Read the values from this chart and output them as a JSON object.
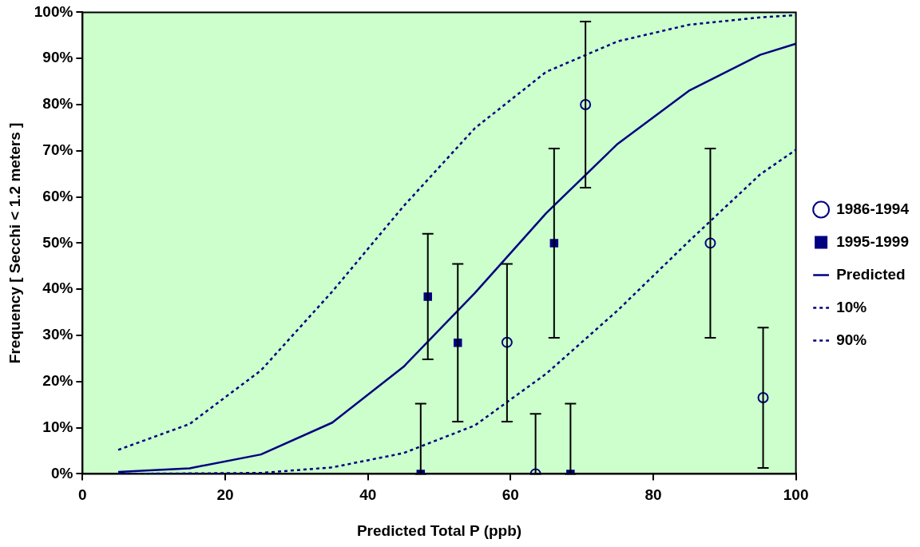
{
  "chart_data": {
    "type": "scatter",
    "xlabel": "Predicted Total P (ppb)",
    "ylabel": "Frequency [ Secchi < 1.2 meters ]",
    "xlim": [
      0,
      100
    ],
    "ylim": [
      0,
      100
    ],
    "xticks": [
      0,
      20,
      40,
      60,
      80,
      100
    ],
    "yticks": [
      {
        "value": 0,
        "label": "0%"
      },
      {
        "value": 10,
        "label": "10%"
      },
      {
        "value": 20,
        "label": "20%"
      },
      {
        "value": 30,
        "label": "30%"
      },
      {
        "value": 40,
        "label": "40%"
      },
      {
        "value": 50,
        "label": "50%"
      },
      {
        "value": 60,
        "label": "60%"
      },
      {
        "value": 70,
        "label": "70%"
      },
      {
        "value": 80,
        "label": "80%"
      },
      {
        "value": 90,
        "label": "90%"
      },
      {
        "value": 100,
        "label": "100%"
      }
    ],
    "grid": false,
    "legend": "right",
    "series": [
      {
        "name": "1986-1994",
        "marker": "circle",
        "color": "#000080",
        "x": [
          59.5,
          63.5,
          70.5,
          88.0,
          95.4
        ],
        "values": [
          28.5,
          0,
          80,
          50,
          16.5
        ],
        "errors": [
          [
            11.3,
            45.5
          ],
          [
            0,
            13
          ],
          [
            62,
            98
          ],
          [
            29.5,
            70.5
          ],
          [
            1.3,
            31.7
          ]
        ]
      },
      {
        "name": "1995-1999",
        "marker": "square",
        "color": "#000080",
        "x": [
          47.4,
          48.4,
          52.6,
          66.1,
          68.4
        ],
        "values": [
          0,
          38.4,
          28.4,
          50,
          0
        ],
        "errors": [
          [
            0,
            15.2
          ],
          [
            24.8,
            52
          ],
          [
            11.3,
            45.5
          ],
          [
            29.5,
            70.5
          ],
          [
            0,
            15.2
          ]
        ]
      },
      {
        "name": "Predicted",
        "type": "line",
        "marker": "none",
        "line_style": "solid",
        "color": "#000080",
        "x": [
          5,
          15,
          25,
          35,
          45,
          55,
          65,
          75,
          85,
          95,
          100
        ],
        "values": [
          0.4,
          1.2,
          4.2,
          11.1,
          23.2,
          39.2,
          56.5,
          71.5,
          83,
          90.8,
          93.2
        ]
      },
      {
        "name": "10%",
        "type": "line",
        "marker": "none",
        "line_style": "dashed",
        "color": "#000080",
        "x": [
          5,
          15,
          25,
          35,
          45,
          55,
          65,
          75,
          85,
          95,
          100
        ],
        "values": [
          0,
          0.1,
          0.2,
          1.4,
          4.5,
          10.5,
          21.7,
          35.4,
          50.4,
          64.9,
          70.2
        ]
      },
      {
        "name": "90%",
        "type": "line",
        "marker": "none",
        "line_style": "dashed",
        "color": "#000080",
        "x": [
          5,
          15,
          25,
          35,
          45,
          55,
          65,
          75,
          85,
          95,
          100
        ],
        "values": [
          5.2,
          10.8,
          22.4,
          39.5,
          58,
          74.9,
          87.1,
          93.7,
          97.3,
          98.9,
          99.4
        ]
      }
    ]
  }
}
